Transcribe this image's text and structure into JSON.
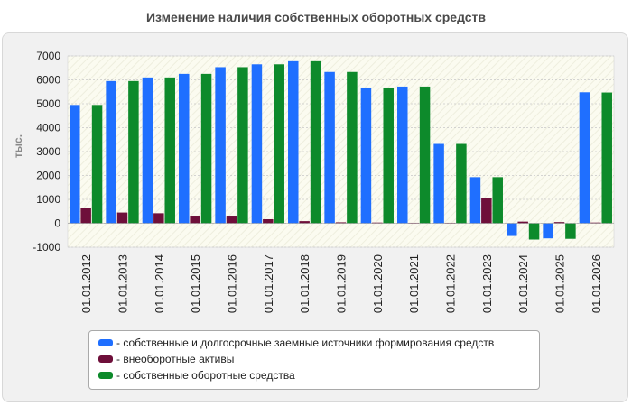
{
  "chart_data": {
    "type": "bar",
    "title": "Изменение наличия собственных оборотных средств",
    "ylabel": "тыс.",
    "xlabel": "",
    "ylim": [
      -1000,
      7000
    ],
    "yticks": [
      -1000,
      0,
      1000,
      2000,
      3000,
      4000,
      5000,
      6000,
      7000
    ],
    "grid": true,
    "legend_position": "bottom",
    "categories": [
      "01.01.2012",
      "01.01.2013",
      "01.01.2014",
      "01.01.2015",
      "01.01.2016",
      "01.01.2017",
      "01.01.2018",
      "01.01.2019",
      "01.01.2020",
      "01.01.2021",
      "01.01.2022",
      "01.01.2023",
      "01.01.2024",
      "01.01.2025",
      "01.01.2026"
    ],
    "series": [
      {
        "name": "- собственные и долгосрочные заемные источники формирования средств",
        "color": "#1f6fff",
        "values": [
          4950,
          5950,
          6100,
          6250,
          6530,
          6650,
          6780,
          6330,
          5680,
          5720,
          3320,
          1930,
          -530,
          -630,
          5480
        ]
      },
      {
        "name": "- внеоборотные активы",
        "color": "#6e0f3a",
        "values": [
          650,
          450,
          420,
          320,
          320,
          170,
          90,
          40,
          30,
          20,
          20,
          1060,
          70,
          50,
          30
        ]
      },
      {
        "name": "- собственные оборотные средства",
        "color": "#0d8a2b",
        "values": [
          4950,
          5950,
          6100,
          6250,
          6530,
          6650,
          6780,
          6330,
          5680,
          5720,
          3320,
          1930,
          -680,
          -650,
          5470
        ]
      }
    ]
  }
}
